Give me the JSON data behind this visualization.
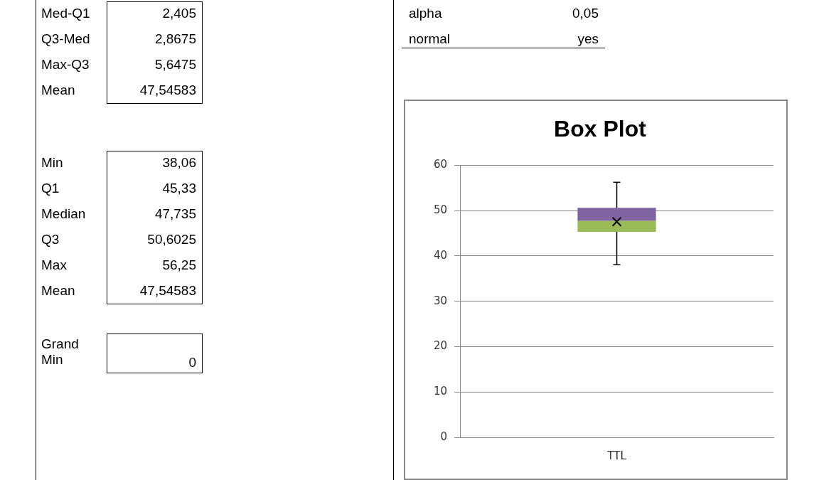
{
  "chart_data": {
    "type": "box",
    "title": "Box Plot",
    "categories": [
      "TTL"
    ],
    "color": "#8064a2",
    "series": [
      {
        "color": "#9bbb59",
        "boxes": [
          {
            "low": 38.06,
            "q1": 45.33,
            "median": 47.735,
            "q3": 50.6025,
            "high": 56.25,
            "mean": 47.54583
          }
        ]
      }
    ],
    "ylim": [
      0,
      60
    ],
    "yticks": [
      0,
      10,
      20,
      30,
      40,
      50,
      60
    ],
    "grid": "y",
    "legend": false,
    "marker": "cross",
    "annotations": [
      "Med-Q1",
      "2,405",
      "Q3-Med",
      "2,8675",
      "Max-Q3",
      "5,6475",
      "Mean",
      "47,54583",
      "Min",
      "38,06",
      "Q1",
      "45,33",
      "Median",
      "47,735",
      "Q3",
      "50,6025",
      "Max",
      "56,25",
      "Mean",
      "47,54583",
      "Grand Min",
      "0",
      "alpha",
      "0,05",
      "normal",
      "yes"
    ]
  }
}
